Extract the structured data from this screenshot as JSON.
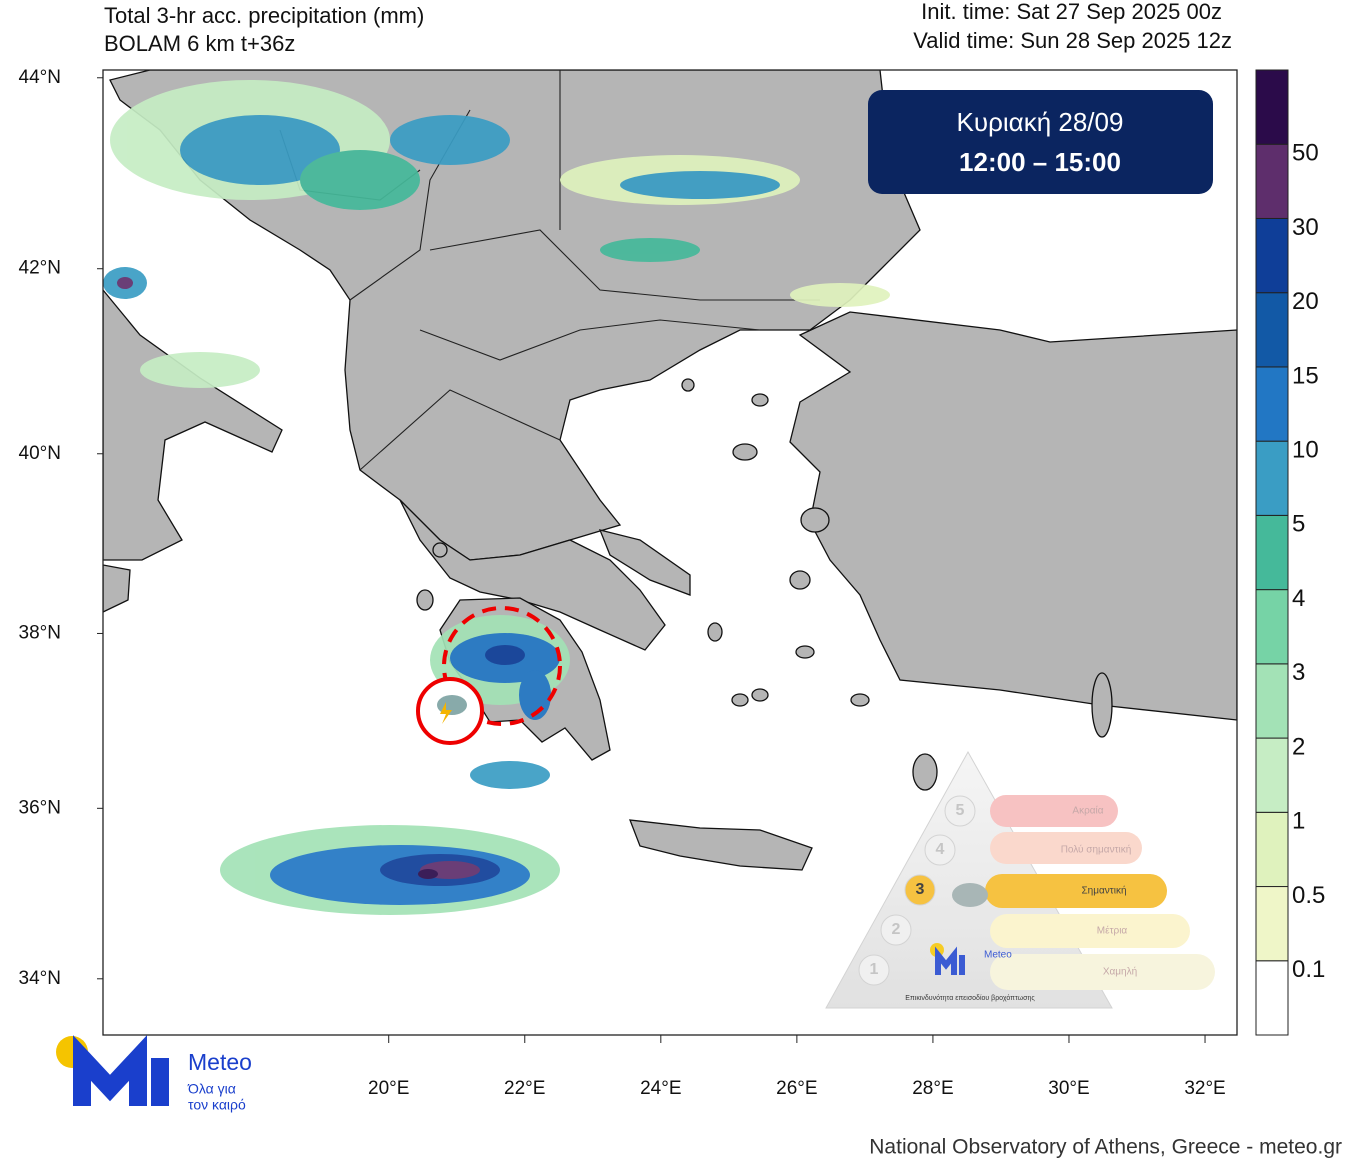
{
  "header": {
    "title": "Total 3-hr acc. precipitation (mm)",
    "subtitle": "BOLAM 6 km t+36z",
    "init_time": "Init. time: Sat 27 Sep 2025 00z",
    "valid_time": "Valid time: Sun 28 Sep 2025 12z"
  },
  "map": {
    "lat_lim": [
      33.33,
      44.08
    ],
    "lon_lim": [
      15.8,
      32.47
    ],
    "lat_ticks": [
      {
        "value": 44,
        "label": "44°N"
      },
      {
        "value": 42,
        "label": "42°N"
      },
      {
        "value": 40,
        "label": "40°N"
      },
      {
        "value": 38,
        "label": "38°N"
      },
      {
        "value": 36,
        "label": "36°N"
      },
      {
        "value": 34,
        "label": "34°N"
      }
    ],
    "lon_ticks": [
      {
        "value": 20,
        "label": "20°E"
      },
      {
        "value": 22,
        "label": "22°E"
      },
      {
        "value": 24,
        "label": "24°E"
      },
      {
        "value": 26,
        "label": "26°E"
      },
      {
        "value": 28,
        "label": "28°E"
      },
      {
        "value": 30,
        "label": "30°E"
      },
      {
        "value": 32,
        "label": "32°E"
      }
    ]
  },
  "colorbar": {
    "levels": [
      0.1,
      0.5,
      1,
      2,
      3,
      4,
      5,
      10,
      15,
      20,
      30,
      50
    ],
    "colors": [
      "#ffffff",
      "#eff6c8",
      "#dff2bd",
      "#c6edc4",
      "#a3e2b6",
      "#76d3a6",
      "#45b99a",
      "#3a9dc4",
      "#2277c4",
      "#1259a6",
      "#0f3e98",
      "#5e2e6c",
      "#2b0b4a"
    ]
  },
  "badge": {
    "day": "Κυριακή 28/09",
    "hours": "12:00 – 15:00"
  },
  "logo": {
    "name": "Meteo",
    "tagline_1": "Όλα για",
    "tagline_2": "τον καιρό"
  },
  "warning_scale": {
    "levels": [
      {
        "number": "5",
        "label": "Ακραία"
      },
      {
        "number": "4",
        "label": "Πολύ σημαντική"
      },
      {
        "number": "3",
        "label": "Σημαντική"
      },
      {
        "number": "2",
        "label": "Μέτρια"
      },
      {
        "number": "1",
        "label": "Χαμηλή"
      }
    ],
    "brand": "Meteo",
    "caption": "Επικινδυνότητα επεισοδίου βροχόπτωσης"
  },
  "footer": "National Observatory of Athens, Greece - meteo.gr"
}
